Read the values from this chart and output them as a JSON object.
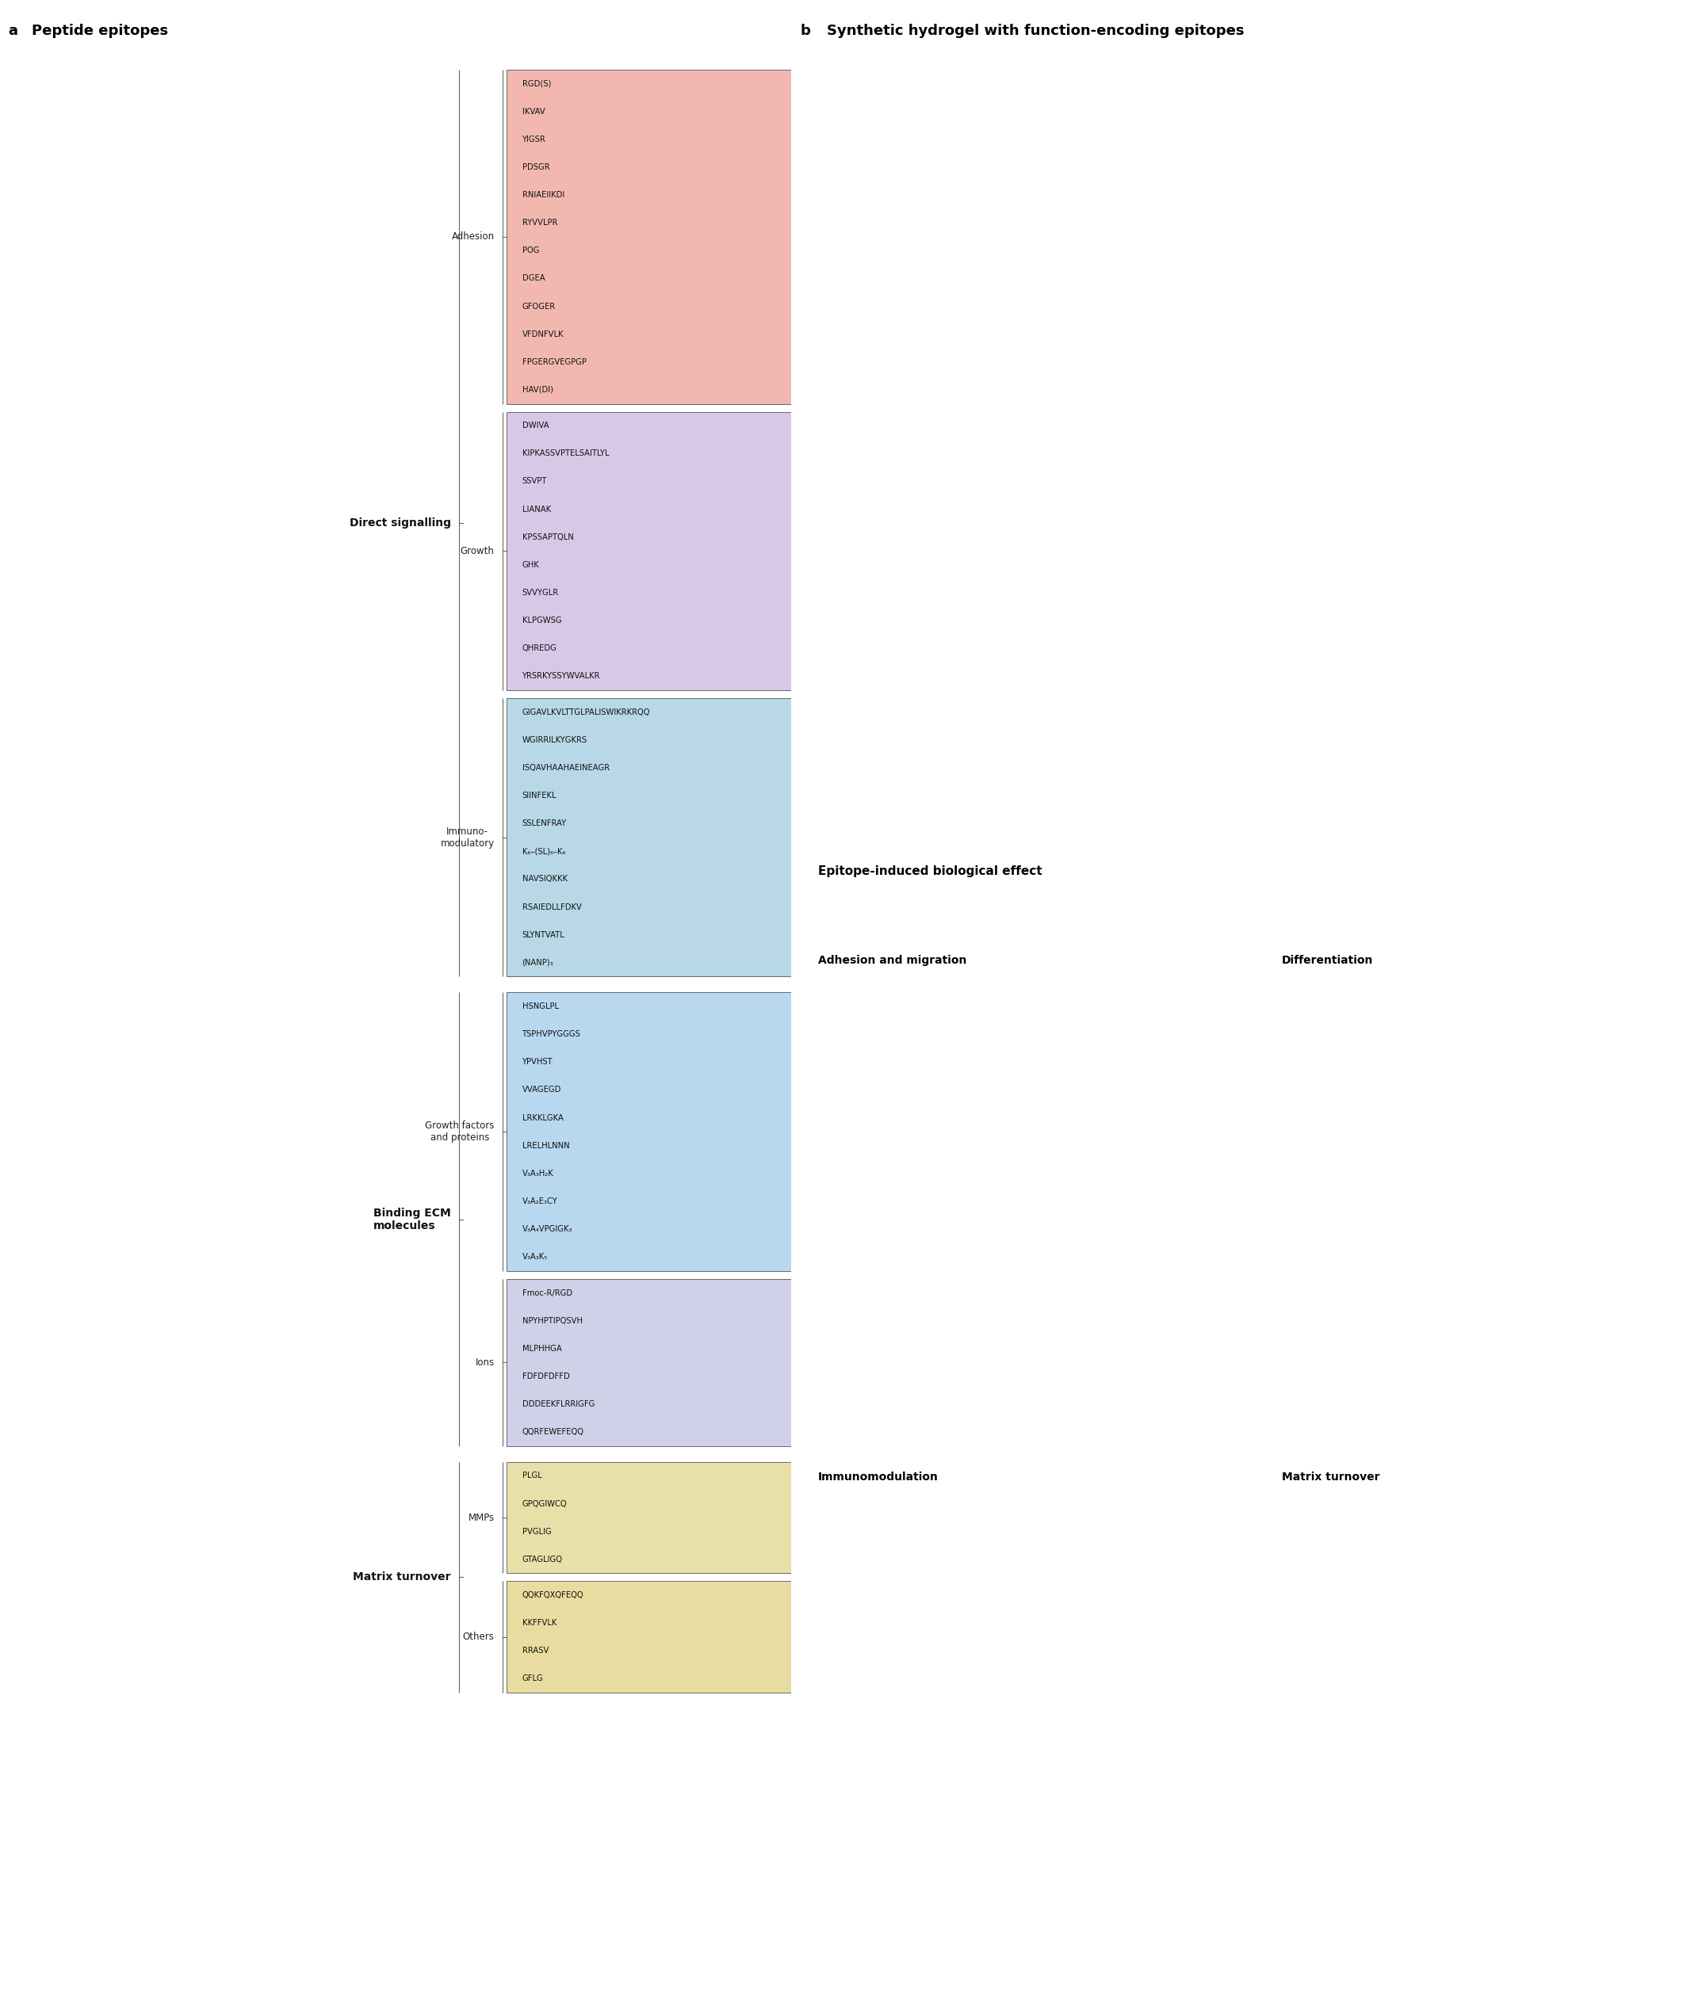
{
  "title_a": "a  Peptide epitopes",
  "title_b": "b  Synthetic hydrogel with function-encoding epitopes",
  "bg_color": "#ffffff",
  "groups": [
    {
      "category": "Direct signalling",
      "subgroups": [
        {
          "name": "Adhesion",
          "color": "#f2b8b0",
          "color_border": "#c8857a",
          "peptides": [
            "RGD(S)",
            "IKVAV",
            "YIGSR",
            "PDSGR",
            "RNIAEIIKDI",
            "RYVVLPR",
            "POG",
            "DGEA",
            "GFOGER",
            "VFDNFVLK",
            "FPGERGVEGPGP",
            "HAV(DI)"
          ]
        },
        {
          "name": "Growth",
          "color": "#d8c8e8",
          "color_border": "#a080b0",
          "peptides": [
            "DWIVA",
            "KIPKASSVPTELSAITLYL",
            "SSVPT",
            "LIANAK",
            "KPSSAPTQLN",
            "GHK",
            "SVVYGLR",
            "KLPGWSG",
            "QHREDG",
            "YRSRKYSSYWVALKR"
          ]
        },
        {
          "name": "Immuno-\nmodulatory",
          "color": "#b8d8e8",
          "color_border": "#7aaabb",
          "peptides": [
            "GIGAVLKVLTTGLPALISWIKRKRQQ",
            "WGIRRILKYGKRS",
            "ISQAVHAAHAEINEAGR",
            "SIINFEKL",
            "SSLENFRAY",
            "K₆–(SL)₆–K₆",
            "NAVSIQKKK",
            "RSAIEDLLFDKV",
            "SLYNTVATL",
            "(NANP)₃"
          ]
        }
      ]
    },
    {
      "category": "Binding ECM\nmolecules",
      "subgroups": [
        {
          "name": "Growth factors\nand proteins",
          "color": "#b8d8f0",
          "color_border": "#7aaac0",
          "peptides": [
            "HSNGLPL",
            "TSPHVPYGGGS",
            "YPVHST",
            "VVAGEGD",
            "LRKKLGKA",
            "LRELHLNNN",
            "V₃A₃H₂K",
            "V₃A₂E₃CY",
            "V₃A₄VPGIGK₃",
            "V₃A₃K₅"
          ]
        },
        {
          "name": "Ions",
          "color": "#d0d0e8",
          "color_border": "#9090b8",
          "peptides": [
            "Fmoc-R/RGD",
            "NPYHPTIPQSVH",
            "MLPHHGA",
            "FDFDFDFFD",
            "DDDEEKFLRRIGFG",
            "QQRFEWEFEQQ"
          ]
        }
      ]
    },
    {
      "category": "Matrix turnover",
      "subgroups": [
        {
          "name": "MMPs",
          "color": "#e8e0a8",
          "color_border": "#b8a860",
          "peptides": [
            "PLGL",
            "GPQGIWCQ",
            "PVGLIG",
            "GTAGLIGQ"
          ]
        },
        {
          "name": "Others",
          "color": "#e8dca0",
          "color_border": "#b8a860",
          "peptides": [
            "QQKFQXQFEQQ",
            "KKFFVLK",
            "RRASV",
            "GFLG"
          ]
        }
      ]
    }
  ]
}
